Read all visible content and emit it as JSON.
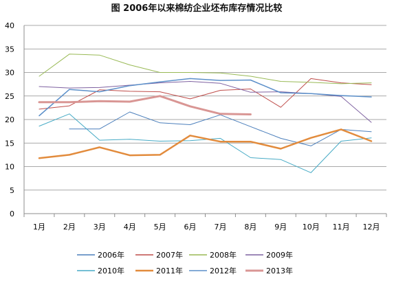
{
  "chart_data": {
    "type": "line",
    "title": "图  2006年以来棉纺企业坯布库存情况比较",
    "xlabel": "",
    "ylabel": "",
    "categories": [
      "1月",
      "2月",
      "3月",
      "4月",
      "5月",
      "6月",
      "7月",
      "8月",
      "9月",
      "10月",
      "11月",
      "12月"
    ],
    "ylim": [
      0,
      40
    ],
    "yticks": [
      0,
      5,
      10,
      15,
      20,
      25,
      30,
      35,
      40
    ],
    "grid": "horizontal",
    "legend_position": "bottom",
    "series": [
      {
        "name": "2006年",
        "color": "#4a7ebb",
        "values": [
          null,
          18.0,
          18.0,
          21.6,
          19.3,
          18.9,
          21.0,
          18.5,
          16.0,
          14.4,
          17.9,
          17.4
        ]
      },
      {
        "name": "2007年",
        "color": "#be4b48",
        "values": [
          22.2,
          22.9,
          26.3,
          26.0,
          25.9,
          24.4,
          26.2,
          26.5,
          22.6,
          28.7,
          27.8,
          27.4
        ]
      },
      {
        "name": "2008年",
        "color": "#98b954",
        "values": [
          29.2,
          33.9,
          33.7,
          31.6,
          30.0,
          30.0,
          29.9,
          29.2,
          28.1,
          27.9,
          27.6,
          27.8
        ]
      },
      {
        "name": "2009年",
        "color": "#7d60a0",
        "values": [
          27.0,
          26.7,
          26.8,
          27.3,
          27.8,
          28.1,
          27.7,
          25.8,
          25.9,
          25.5,
          24.9,
          19.4
        ]
      },
      {
        "name": "2010年",
        "color": "#46aac5",
        "values": [
          18.6,
          21.2,
          15.6,
          15.8,
          15.4,
          15.5,
          16.0,
          11.9,
          11.5,
          8.7,
          15.4,
          16.1
        ]
      },
      {
        "name": "2011年",
        "color": "#e28b3c",
        "values": [
          11.8,
          12.5,
          14.1,
          12.4,
          12.5,
          16.6,
          15.3,
          15.3,
          13.8,
          16.1,
          17.9,
          15.4
        ]
      },
      {
        "name": "2012年",
        "color": "#5b8fc9",
        "values": [
          20.8,
          26.4,
          25.9,
          27.2,
          28.0,
          28.7,
          28.3,
          28.4,
          25.7,
          25.5,
          25.1,
          24.8
        ]
      },
      {
        "name": "2013年",
        "color": "#d99694",
        "values": [
          23.7,
          23.7,
          23.9,
          23.8,
          25.0,
          22.8,
          21.2,
          21.1,
          null,
          null,
          null,
          null
        ]
      }
    ],
    "series_stroke_widths": [
      1,
      1,
      1,
      1,
      1,
      2.5,
      1.5,
      3
    ]
  }
}
